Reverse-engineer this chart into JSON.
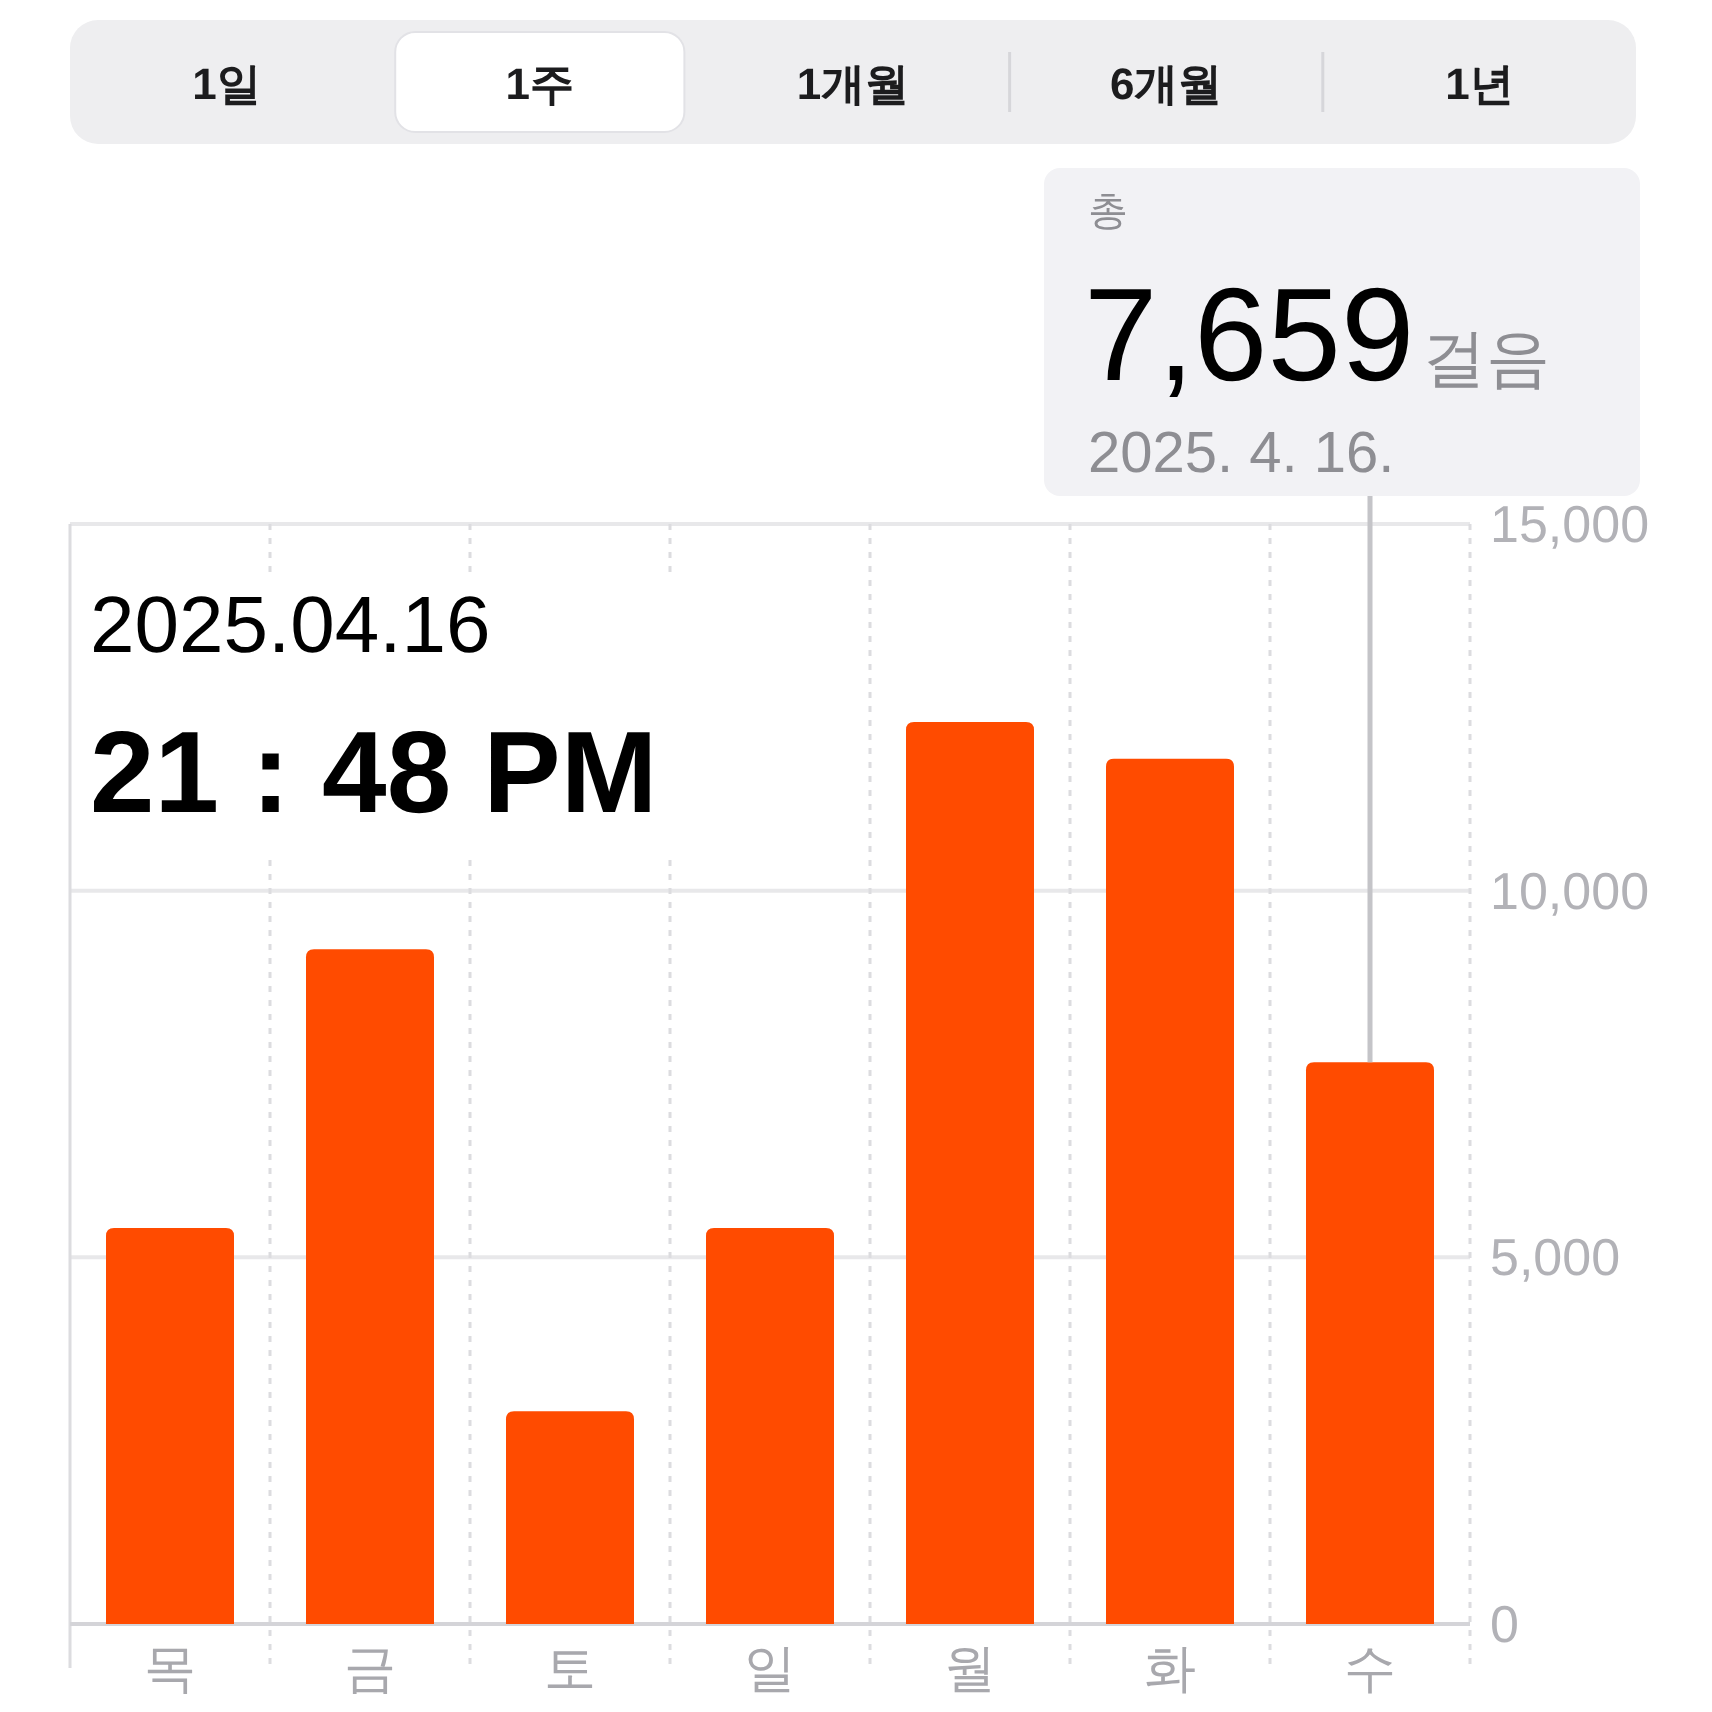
{
  "chart_data": {
    "type": "bar",
    "categories": [
      "목",
      "금",
      "토",
      "일",
      "월",
      "화",
      "수"
    ],
    "values": [
      5400,
      9200,
      2900,
      5400,
      12300,
      11800,
      7659
    ],
    "color": "#ff4b00",
    "ylim": [
      0,
      15000
    ],
    "yticks": [
      0,
      {
        "value": 5000,
        "label": "5,000"
      },
      {
        "value": 10000,
        "label": "10,000"
      },
      {
        "value": 15000,
        "label": "15,000"
      }
    ],
    "grid": true,
    "annotations": [
      "1일",
      "1주",
      "1개월",
      "6개월",
      "1년",
      {
        "text": "총\n7,659걸음\n2025. 4. 16.",
        "x": "수",
        "y": 7659
      },
      "2025.04.16",
      "21 : 48 PM"
    ]
  }
}
